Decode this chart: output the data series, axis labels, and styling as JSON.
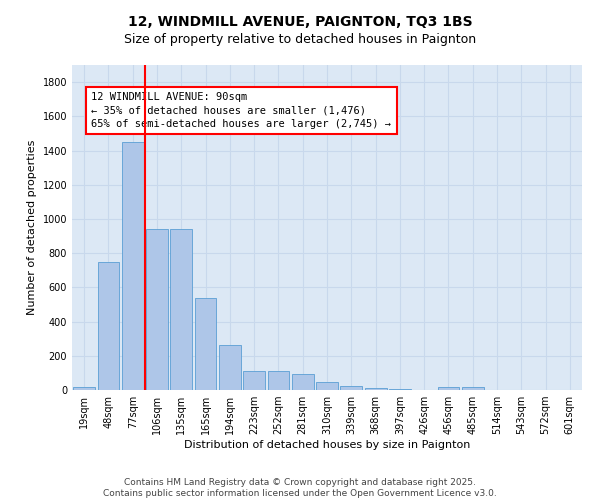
{
  "title": "12, WINDMILL AVENUE, PAIGNTON, TQ3 1BS",
  "subtitle": "Size of property relative to detached houses in Paignton",
  "xlabel": "Distribution of detached houses by size in Paignton",
  "ylabel": "Number of detached properties",
  "categories": [
    "19sqm",
    "48sqm",
    "77sqm",
    "106sqm",
    "135sqm",
    "165sqm",
    "194sqm",
    "223sqm",
    "252sqm",
    "281sqm",
    "310sqm",
    "339sqm",
    "368sqm",
    "397sqm",
    "426sqm",
    "456sqm",
    "485sqm",
    "514sqm",
    "543sqm",
    "572sqm",
    "601sqm"
  ],
  "values": [
    20,
    750,
    1450,
    940,
    940,
    535,
    265,
    110,
    110,
    95,
    45,
    25,
    10,
    5,
    0,
    20,
    15,
    0,
    0,
    0,
    0
  ],
  "bar_color": "#aec6e8",
  "bar_edge_color": "#5a9fd4",
  "vline_x": 2.5,
  "vline_color": "red",
  "annotation_line1": "12 WINDMILL AVENUE: 90sqm",
  "annotation_line2": "← 35% of detached houses are smaller (1,476)",
  "annotation_line3": "65% of semi-detached houses are larger (2,745) →",
  "ylim": [
    0,
    1900
  ],
  "yticks": [
    0,
    200,
    400,
    600,
    800,
    1000,
    1200,
    1400,
    1600,
    1800
  ],
  "grid_color": "#c8d8ec",
  "bg_color": "#dce8f5",
  "footer": "Contains HM Land Registry data © Crown copyright and database right 2025.\nContains public sector information licensed under the Open Government Licence v3.0.",
  "title_fontsize": 10,
  "subtitle_fontsize": 9,
  "xlabel_fontsize": 8,
  "ylabel_fontsize": 8,
  "tick_fontsize": 7,
  "footer_fontsize": 6.5,
  "annot_fontsize": 7.5
}
